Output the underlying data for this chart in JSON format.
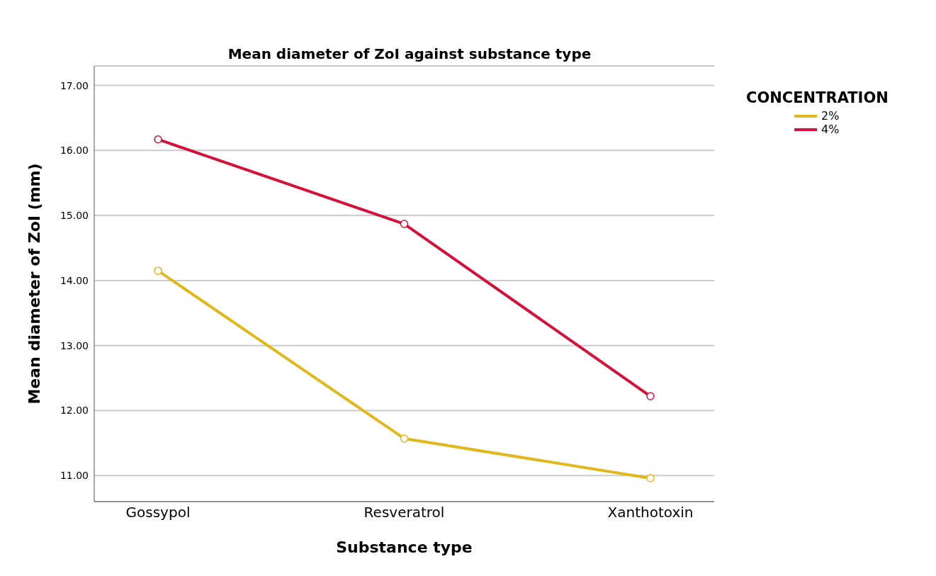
{
  "chart_data": {
    "type": "line",
    "title": "Mean diameter of ZoI against substance type",
    "xlabel": "Substance type",
    "ylabel": "Mean diameter of ZoI (mm)",
    "legend_title": "CONCENTRATION",
    "categories": [
      "Gossypol",
      "Resveratrol",
      "Xanthotoxin"
    ],
    "series": [
      {
        "name": "2%",
        "color": "#e1b81c",
        "values": [
          14.15,
          11.57,
          10.96
        ]
      },
      {
        "name": "4%",
        "color": "#d5103a",
        "values": [
          16.17,
          14.87,
          12.22
        ]
      }
    ],
    "ylim": [
      10.6,
      17.3
    ],
    "yticks": [
      {
        "value": 11,
        "label": "11.00"
      },
      {
        "value": 12,
        "label": "12.00"
      },
      {
        "value": 13,
        "label": "13.00"
      },
      {
        "value": 14,
        "label": "14.00"
      },
      {
        "value": 15,
        "label": "15.00"
      },
      {
        "value": 16,
        "label": "16.00"
      },
      {
        "value": 17,
        "label": "17.00"
      }
    ],
    "grid": "y",
    "legend": "top right",
    "marker": "circle",
    "line_style": "solid"
  }
}
